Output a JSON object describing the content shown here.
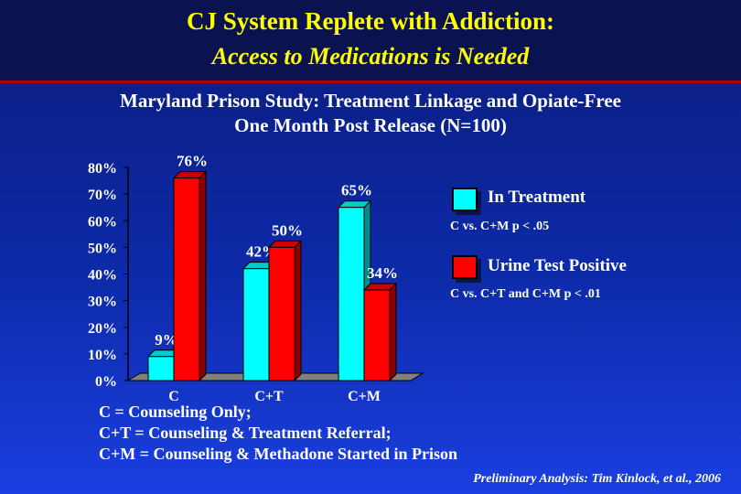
{
  "header": {
    "title_line1": "CJ System Replete with Addiction:",
    "title_line2": "Access to Medications is Needed"
  },
  "study": {
    "line1": "Maryland Prison Study: Treatment Linkage and Opiate-Free",
    "line2": "One Month Post Release (N=100)"
  },
  "chart_data": {
    "type": "bar",
    "categories": [
      "C",
      "C+T",
      "C+M"
    ],
    "series": [
      {
        "name": "In Treatment",
        "values": [
          9,
          42,
          65
        ],
        "labels": [
          "9%",
          "42%",
          "65%"
        ],
        "color": "#00ffff"
      },
      {
        "name": "Urine Test Positive",
        "values": [
          76,
          50,
          34
        ],
        "labels": [
          "76%",
          "50%",
          "34%"
        ],
        "color": "#ff0000"
      }
    ],
    "ylim": [
      0,
      80
    ],
    "yticks": [
      "0%",
      "10%",
      "20%",
      "30%",
      "40%",
      "50%",
      "60%",
      "70%",
      "80%"
    ],
    "legend_position": "right",
    "grid": false
  },
  "legend": {
    "treatment_label": "In Treatment",
    "treatment_note": "C vs. C+M p < .05",
    "urine_label": "Urine Test Positive",
    "urine_note": "C vs. C+T and C+M p < .01"
  },
  "footnotes": {
    "line1": "C = Counseling Only;",
    "line2": "C+T = Counseling & Treatment Referral;",
    "line3": "C+M = Counseling & Methadone Started in Prison"
  },
  "credit": "Preliminary Analysis: Tim Kinlock, et al., 2006"
}
